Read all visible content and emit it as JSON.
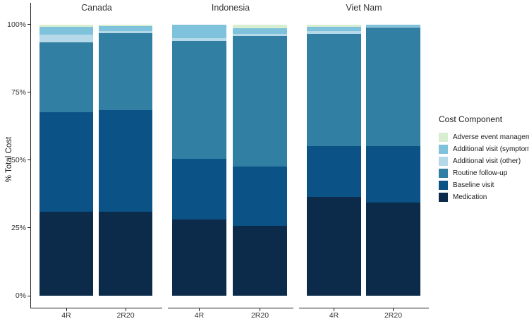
{
  "chart_data": {
    "type": "bar",
    "stacked": true,
    "percent_stacked": true,
    "title": "",
    "xlabel": "",
    "ylabel": "% Total Cost",
    "ylim": [
      0,
      100
    ],
    "y_tick_values": [
      0,
      25,
      50,
      75,
      100
    ],
    "y_tick_labels": [
      "0%",
      "25%",
      "50%",
      "75%",
      "100%"
    ],
    "categories": [
      "4R",
      "2R20"
    ],
    "stack_order_bottom_to_top": [
      "Medication",
      "Baseline visit",
      "Routine follow-up",
      "Additional visit (other)",
      "Additional visit (symptoms)",
      "Adverse event management"
    ],
    "colors": {
      "Medication": "#0c2b4a",
      "Baseline visit": "#0b5286",
      "Routine follow-up": "#317fa3",
      "Additional visit (other)": "#b5d9e8",
      "Additional visit (symptoms)": "#7fc2db",
      "Adverse event management": "#d7eed1"
    },
    "facets": [
      {
        "title": "Canada",
        "series": {
          "Medication": [
            31.0,
            31.0
          ],
          "Baseline visit": [
            36.5,
            37.5
          ],
          "Routine follow-up": [
            25.9,
            28.3
          ],
          "Additional visit (other)": [
            2.9,
            0.8
          ],
          "Additional visit (symptoms)": [
            2.9,
            1.8
          ],
          "Adverse event management": [
            0.8,
            0.6
          ]
        }
      },
      {
        "title": "Indonesia",
        "series": {
          "Medication": [
            28.0,
            25.8
          ],
          "Baseline visit": [
            22.4,
            21.7
          ],
          "Routine follow-up": [
            43.5,
            48.2
          ],
          "Additional visit (other)": [
            1.0,
            0.9
          ],
          "Additional visit (symptoms)": [
            5.1,
            2.0
          ],
          "Adverse event management": [
            0.0,
            1.4
          ]
        }
      },
      {
        "title": "Viet Nam",
        "series": {
          "Medication": [
            36.3,
            34.4
          ],
          "Baseline visit": [
            18.9,
            20.7
          ],
          "Routine follow-up": [
            41.4,
            43.8
          ],
          "Additional visit (other)": [
            1.0,
            0.2
          ],
          "Additional visit (symptoms)": [
            1.4,
            0.8
          ],
          "Adverse event management": [
            1.0,
            0.1
          ]
        }
      }
    ],
    "legend": {
      "title": "Cost Component",
      "position": "right",
      "items_top_to_bottom": [
        {
          "label": "Adverse event management",
          "color": "#d7eed1"
        },
        {
          "label": "Additional visit (symptoms)",
          "color": "#7fc2db"
        },
        {
          "label": "Additional visit (other)",
          "color": "#b5d9e8"
        },
        {
          "label": "Routine follow-up",
          "color": "#317fa3"
        },
        {
          "label": "Baseline visit",
          "color": "#0b5286"
        },
        {
          "label": "Medication",
          "color": "#0c2b4a"
        }
      ]
    }
  }
}
